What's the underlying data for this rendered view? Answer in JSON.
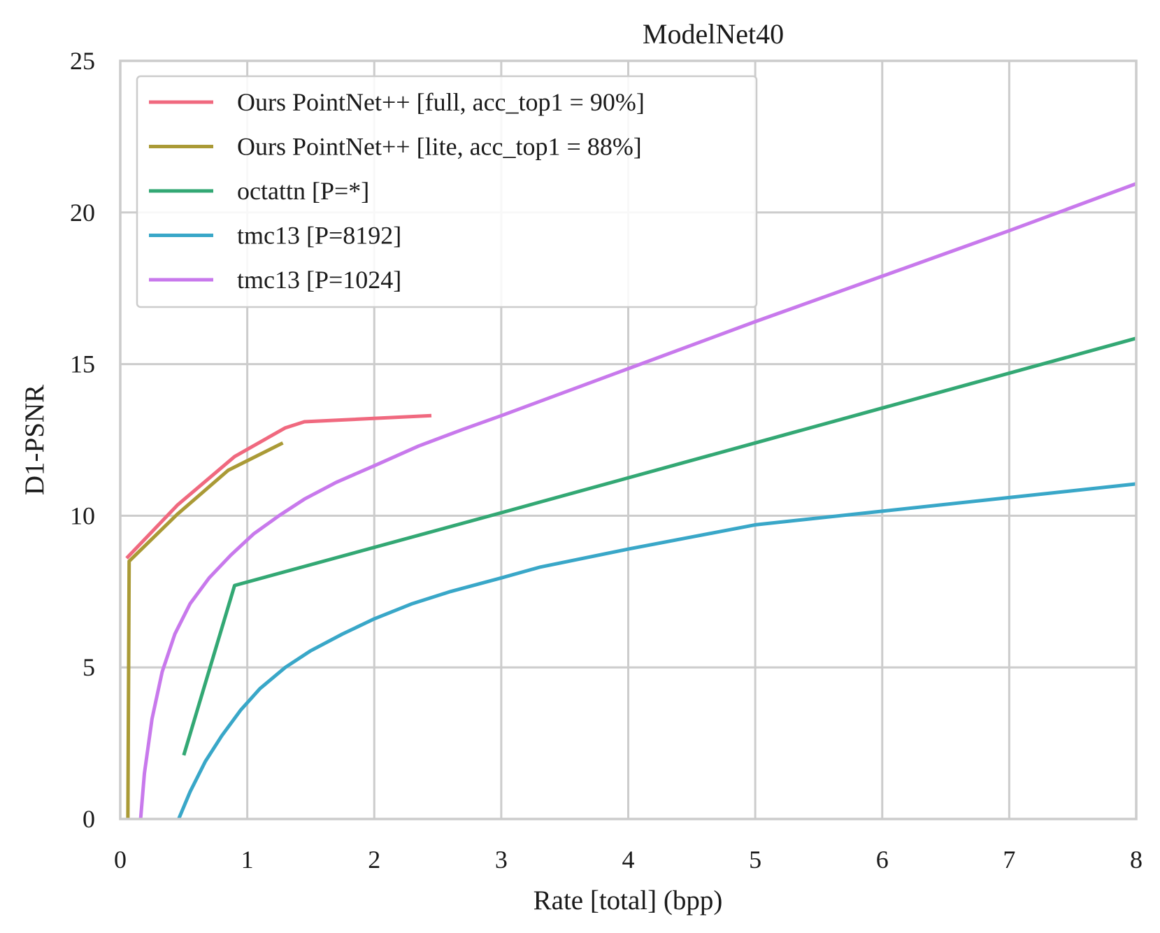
{
  "chart_data": {
    "type": "line",
    "title": "ModelNet40",
    "xlabel": "Rate [total] (bpp)",
    "ylabel": "D1-PSNR",
    "xlim": [
      0,
      8
    ],
    "ylim": [
      0,
      25
    ],
    "xticks": [
      0,
      1,
      2,
      3,
      4,
      5,
      6,
      7,
      8
    ],
    "yticks": [
      0,
      5,
      10,
      15,
      20,
      25
    ],
    "grid": true,
    "legend_position": "upper-left",
    "series": [
      {
        "name": "Ours PointNet++ [full, acc_top1 = 90%]",
        "color": "#f0697f",
        "x": [
          0.05,
          0.45,
          0.9,
          1.3,
          1.45,
          2.45
        ],
        "y": [
          8.6,
          10.35,
          11.95,
          12.9,
          13.1,
          13.3
        ]
      },
      {
        "name": "Ours PointNet++ [lite, acc_top1 = 88%]",
        "color": "#aa9a36",
        "x": [
          0.06,
          0.07,
          0.45,
          0.85,
          1.28
        ],
        "y": [
          0.0,
          8.5,
          10.05,
          11.5,
          12.4
        ]
      },
      {
        "name": "octattn [P=*]",
        "color": "#33a874",
        "x": [
          0.5,
          0.9,
          3.0,
          5.0,
          8.0
        ],
        "y": [
          2.1,
          7.7,
          10.1,
          12.4,
          15.85
        ]
      },
      {
        "name": "tmc13 [P=8192]",
        "color": "#39a7c8",
        "x": [
          0.46,
          0.55,
          0.67,
          0.8,
          0.95,
          1.1,
          1.3,
          1.5,
          1.75,
          2.0,
          2.3,
          2.6,
          3.0,
          3.3,
          4.0,
          5.0,
          6.0,
          7.0,
          8.0
        ],
        "y": [
          0.0,
          0.9,
          1.9,
          2.75,
          3.6,
          4.3,
          5.0,
          5.55,
          6.1,
          6.6,
          7.1,
          7.5,
          7.95,
          8.3,
          8.9,
          9.7,
          10.15,
          10.6,
          11.05
        ]
      },
      {
        "name": "tmc13 [P=1024]",
        "color": "#c879ec",
        "x": [
          0.16,
          0.19,
          0.25,
          0.33,
          0.43,
          0.55,
          0.7,
          0.87,
          1.05,
          1.25,
          1.45,
          1.7,
          2.0,
          2.35,
          2.7,
          3.0,
          4.0,
          5.0,
          6.0,
          7.0,
          8.0
        ],
        "y": [
          0.0,
          1.5,
          3.3,
          4.85,
          6.1,
          7.1,
          7.95,
          8.7,
          9.4,
          10.0,
          10.55,
          11.1,
          11.65,
          12.3,
          12.85,
          13.3,
          14.85,
          16.4,
          17.9,
          19.4,
          20.95
        ]
      }
    ]
  }
}
